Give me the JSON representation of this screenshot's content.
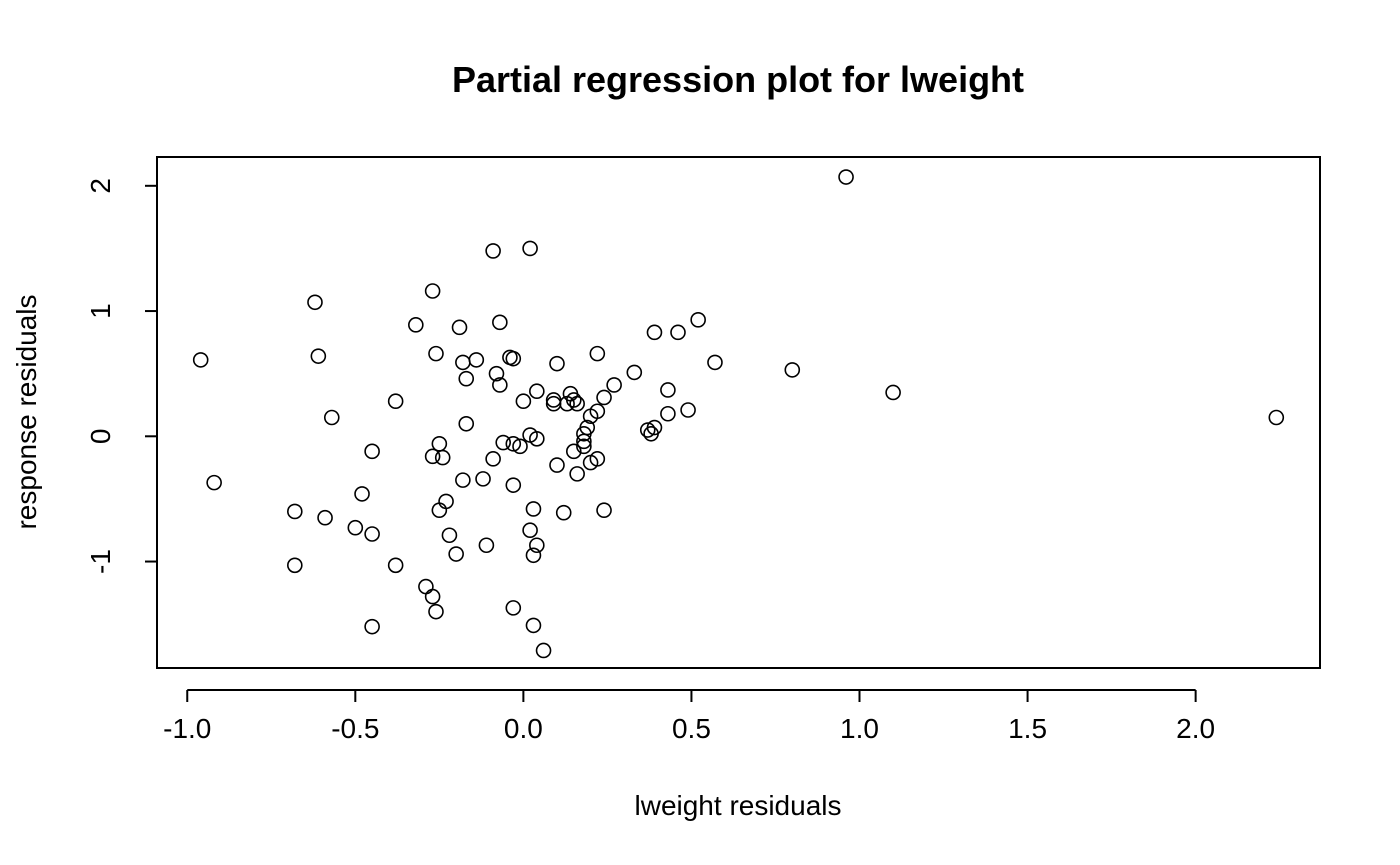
{
  "chart_data": {
    "type": "scatter",
    "title": "Partial regression plot for lweight",
    "xlabel": "lweight residuals",
    "ylabel": "response residuals",
    "xlim": [
      -1.09,
      2.37
    ],
    "ylim": [
      -1.85,
      2.23
    ],
    "xticks": [
      -1.0,
      -0.5,
      0.0,
      0.5,
      1.0,
      1.5,
      2.0
    ],
    "xtick_labels": [
      "-1.0",
      "-0.5",
      "0.0",
      "0.5",
      "1.0",
      "1.5",
      "2.0"
    ],
    "yticks": [
      -1,
      0,
      1,
      2
    ],
    "ytick_labels": [
      "-1",
      "0",
      "1",
      "2"
    ],
    "grid": false,
    "marker": "open-circle",
    "points": [
      {
        "x": 0.96,
        "y": 2.07
      },
      {
        "x": -0.09,
        "y": 1.48
      },
      {
        "x": 0.02,
        "y": 1.5
      },
      {
        "x": -0.27,
        "y": 1.16
      },
      {
        "x": -0.62,
        "y": 1.07
      },
      {
        "x": 0.52,
        "y": 0.93
      },
      {
        "x": -0.32,
        "y": 0.89
      },
      {
        "x": -0.07,
        "y": 0.91
      },
      {
        "x": -0.19,
        "y": 0.87
      },
      {
        "x": 0.39,
        "y": 0.83
      },
      {
        "x": 0.46,
        "y": 0.83
      },
      {
        "x": -0.96,
        "y": 0.61
      },
      {
        "x": -0.61,
        "y": 0.64
      },
      {
        "x": -0.26,
        "y": 0.66
      },
      {
        "x": 0.22,
        "y": 0.66
      },
      {
        "x": -0.18,
        "y": 0.59
      },
      {
        "x": -0.14,
        "y": 0.61
      },
      {
        "x": -0.04,
        "y": 0.63
      },
      {
        "x": -0.03,
        "y": 0.62
      },
      {
        "x": 0.1,
        "y": 0.58
      },
      {
        "x": 0.57,
        "y": 0.59
      },
      {
        "x": 0.8,
        "y": 0.53
      },
      {
        "x": -0.08,
        "y": 0.5
      },
      {
        "x": -0.17,
        "y": 0.46
      },
      {
        "x": -0.07,
        "y": 0.41
      },
      {
        "x": 0.33,
        "y": 0.51
      },
      {
        "x": 0.27,
        "y": 0.41
      },
      {
        "x": 0.43,
        "y": 0.37
      },
      {
        "x": 1.1,
        "y": 0.35
      },
      {
        "x": 0.04,
        "y": 0.36
      },
      {
        "x": 0.14,
        "y": 0.34
      },
      {
        "x": 0.15,
        "y": 0.29
      },
      {
        "x": 0.24,
        "y": 0.31
      },
      {
        "x": -0.38,
        "y": 0.28
      },
      {
        "x": 0.0,
        "y": 0.28
      },
      {
        "x": 0.09,
        "y": 0.29
      },
      {
        "x": 0.09,
        "y": 0.26
      },
      {
        "x": 0.13,
        "y": 0.26
      },
      {
        "x": 0.16,
        "y": 0.26
      },
      {
        "x": 0.22,
        "y": 0.2
      },
      {
        "x": 0.2,
        "y": 0.16
      },
      {
        "x": 0.49,
        "y": 0.21
      },
      {
        "x": 0.43,
        "y": 0.18
      },
      {
        "x": 2.24,
        "y": 0.15
      },
      {
        "x": -0.57,
        "y": 0.15
      },
      {
        "x": -0.17,
        "y": 0.1
      },
      {
        "x": 0.19,
        "y": 0.07
      },
      {
        "x": 0.37,
        "y": 0.05
      },
      {
        "x": 0.39,
        "y": 0.07
      },
      {
        "x": 0.38,
        "y": 0.02
      },
      {
        "x": 0.02,
        "y": 0.01
      },
      {
        "x": 0.18,
        "y": 0.02
      },
      {
        "x": 0.04,
        "y": -0.02
      },
      {
        "x": 0.18,
        "y": -0.04
      },
      {
        "x": 0.18,
        "y": -0.08
      },
      {
        "x": -0.06,
        "y": -0.05
      },
      {
        "x": -0.03,
        "y": -0.06
      },
      {
        "x": -0.01,
        "y": -0.08
      },
      {
        "x": -0.25,
        "y": -0.06
      },
      {
        "x": -0.45,
        "y": -0.12
      },
      {
        "x": -0.27,
        "y": -0.16
      },
      {
        "x": -0.24,
        "y": -0.17
      },
      {
        "x": -0.09,
        "y": -0.18
      },
      {
        "x": 0.15,
        "y": -0.12
      },
      {
        "x": 0.22,
        "y": -0.18
      },
      {
        "x": 0.2,
        "y": -0.21
      },
      {
        "x": 0.1,
        "y": -0.23
      },
      {
        "x": 0.16,
        "y": -0.3
      },
      {
        "x": -0.92,
        "y": -0.37
      },
      {
        "x": -0.18,
        "y": -0.35
      },
      {
        "x": -0.12,
        "y": -0.34
      },
      {
        "x": -0.03,
        "y": -0.39
      },
      {
        "x": -0.48,
        "y": -0.46
      },
      {
        "x": -0.23,
        "y": -0.52
      },
      {
        "x": -0.25,
        "y": -0.59
      },
      {
        "x": 0.03,
        "y": -0.58
      },
      {
        "x": 0.12,
        "y": -0.61
      },
      {
        "x": 0.24,
        "y": -0.59
      },
      {
        "x": -0.68,
        "y": -0.6
      },
      {
        "x": -0.59,
        "y": -0.65
      },
      {
        "x": -0.5,
        "y": -0.73
      },
      {
        "x": -0.45,
        "y": -0.78
      },
      {
        "x": -0.22,
        "y": -0.79
      },
      {
        "x": 0.02,
        "y": -0.75
      },
      {
        "x": -0.11,
        "y": -0.87
      },
      {
        "x": 0.04,
        "y": -0.87
      },
      {
        "x": -0.2,
        "y": -0.94
      },
      {
        "x": 0.03,
        "y": -0.95
      },
      {
        "x": -0.68,
        "y": -1.03
      },
      {
        "x": -0.38,
        "y": -1.03
      },
      {
        "x": -0.29,
        "y": -1.2
      },
      {
        "x": -0.27,
        "y": -1.28
      },
      {
        "x": -0.26,
        "y": -1.4
      },
      {
        "x": -0.03,
        "y": -1.37
      },
      {
        "x": -0.45,
        "y": -1.52
      },
      {
        "x": 0.03,
        "y": -1.51
      },
      {
        "x": 0.06,
        "y": -1.71
      }
    ]
  }
}
